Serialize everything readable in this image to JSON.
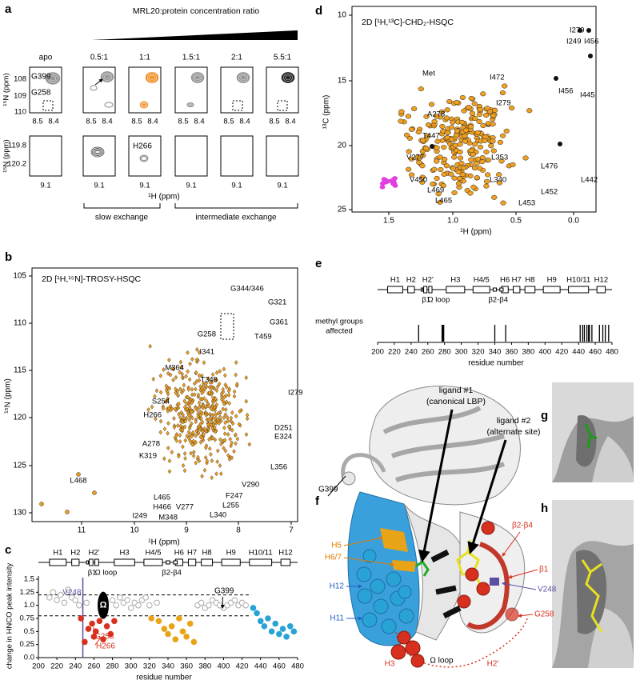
{
  "panel_labels": [
    "a",
    "b",
    "c",
    "d",
    "e",
    "f",
    "g",
    "h"
  ],
  "a": {
    "ratio_title": "MRL20:protein concentration ratio",
    "columns": [
      "apo",
      "0.5:1",
      "1:1",
      "1.5:1",
      "2:1",
      "5.5:1"
    ],
    "peaks": [
      "G399",
      "G258",
      "H266"
    ],
    "top_yticks": [
      "108",
      "109",
      "110"
    ],
    "top_xticks": [
      "8.5",
      "8.4"
    ],
    "bottom_yticks": [
      "119.8",
      "120.2"
    ],
    "bottom_xtick": "9.1",
    "ylabel": "¹⁵N (ppm)",
    "xlabel": "¹H (ppm)",
    "regimes": [
      "slow exchange",
      "intermediate exchange"
    ]
  },
  "b": {
    "title": "2D [¹H,¹⁵N]-TROSY-HSQC",
    "xticks": [
      "11",
      "10",
      "9",
      "8",
      "7"
    ],
    "yticks": [
      "105",
      "110",
      "115",
      "120",
      "125",
      "130"
    ],
    "xlabel": "¹H (ppm)",
    "ylabel": "¹⁵N (ppm)",
    "peaks": [
      "G344/346",
      "G321",
      "G258",
      "G361",
      "T459",
      "I341",
      "M364",
      "T349",
      "I279",
      "S254",
      "H266",
      "D251",
      "E324",
      "A278",
      "K319",
      "L356",
      "L468",
      "V290",
      "F247",
      "L465",
      "H466",
      "V277",
      "L255",
      "I249",
      "M348",
      "L340"
    ]
  },
  "c": {
    "helices": [
      "H1",
      "H2",
      "H2'",
      "H3",
      "H4/5",
      "H6",
      "H7",
      "H8",
      "H9",
      "H10/11",
      "H12"
    ],
    "strands": [
      "β1",
      "Ω loop",
      "β2-β4"
    ],
    "ylabel": "change in HNCO peak intensity",
    "xlabel": "residue number",
    "xlim": [
      200,
      480
    ],
    "xticks": [
      200,
      220,
      240,
      260,
      280,
      300,
      320,
      340,
      360,
      380,
      400,
      420,
      440,
      460,
      480
    ],
    "ylim": [
      0,
      1.5
    ],
    "yticks": [
      {
        "value": 0,
        "label": "0.0"
      },
      0.25,
      {
        "value": 0.5,
        "label": "0.5"
      },
      0.75,
      {
        "value": 1,
        "label": "1.0"
      },
      1.25,
      {
        "value": 1.5,
        "label": "1.5"
      }
    ],
    "thresholds": [
      0.8,
      1.2
    ],
    "highlight_residue": 248,
    "annotations": [
      "V248",
      "G399",
      "G258",
      "H266",
      "Ω"
    ],
    "series": [
      {
        "color": "#aaaaaa",
        "filled": false,
        "x": [
          212,
          216,
          220,
          224,
          228,
          232,
          236,
          240,
          244,
          252,
          280,
          284,
          288,
          292,
          296,
          300,
          304,
          308,
          312,
          316,
          320,
          328,
          372,
          376,
          380,
          384,
          388,
          392,
          396,
          400,
          404,
          408,
          412,
          416,
          420,
          424
        ],
        "y": [
          1.15,
          1.25,
          1.1,
          1.2,
          1.05,
          1.3,
          1.15,
          1.1,
          1.0,
          1.05,
          1.1,
          1.0,
          1.15,
          1.05,
          1.1,
          0.95,
          1.05,
          1.0,
          1.1,
          1.15,
          1.0,
          1.05,
          1.0,
          1.05,
          0.95,
          1.0,
          1.1,
          1.05,
          1.0,
          0.95,
          1.0,
          1.05,
          1.1,
          1.0,
          1.05,
          1.0
        ]
      },
      {
        "color": "#d7301f",
        "filled": true,
        "x": [
          246,
          250,
          254,
          258,
          260,
          262,
          266,
          270,
          274,
          278,
          282
        ],
        "y": [
          0.75,
          0.3,
          0.55,
          0.65,
          0.4,
          0.5,
          0.7,
          0.35,
          0.6,
          0.45,
          0.7
        ]
      },
      {
        "color": "#e8a317",
        "filled": true,
        "x": [
          322,
          330,
          336,
          340,
          344,
          348,
          352,
          356,
          360,
          364,
          368
        ],
        "y": [
          0.75,
          0.7,
          0.55,
          0.45,
          0.6,
          0.35,
          0.75,
          0.5,
          0.4,
          0.65,
          0.3
        ]
      },
      {
        "color": "#29a3d6",
        "filled": true,
        "x": [
          432,
          436,
          440,
          444,
          448,
          452,
          456,
          460,
          464,
          468,
          472,
          476
        ],
        "y": [
          0.95,
          0.85,
          0.7,
          0.6,
          0.75,
          0.5,
          0.65,
          0.45,
          0.55,
          0.4,
          0.6,
          0.5
        ]
      }
    ]
  },
  "d": {
    "title": "2D [¹H,¹³C]-CHD₂-HSQC",
    "xticks": [
      "1.5",
      "1.0",
      "0.5",
      "0.0"
    ],
    "yticks": [
      "10",
      "15",
      "20",
      "25"
    ],
    "xlabel": "¹H (ppm)",
    "ylabel": "¹³C (ppm)",
    "peaks": [
      "I279",
      "I249",
      "I456",
      "Met",
      "I472",
      "I279",
      "I456",
      "I445",
      "A278",
      "T447",
      "V277",
      "L353",
      "V450",
      "L340",
      "L469",
      "L465",
      "L476",
      "L442",
      "L452",
      "L453"
    ]
  },
  "e": {
    "helices": [
      "H1",
      "H2",
      "H2'",
      "H3",
      "H4/5",
      "H6",
      "H7",
      "H8",
      "H9",
      "H10/11",
      "H12"
    ],
    "strands": [
      "β1",
      "Ω loop",
      "β2-β4"
    ],
    "ylabel_lines": [
      "methyl groups",
      "affected"
    ],
    "xlabel": "residue number",
    "xlim": [
      200,
      480
    ],
    "xticks": [
      200,
      220,
      240,
      260,
      280,
      300,
      320,
      340,
      360,
      380,
      400,
      420,
      440,
      460,
      480
    ],
    "affected_residues": [
      249,
      277,
      278,
      279,
      340,
      353,
      442,
      445,
      447,
      450,
      452,
      453,
      456,
      465,
      469,
      472,
      476
    ]
  },
  "f": {
    "ligands": [
      {
        "name": "ligand #1",
        "site": "(canonical LBP)"
      },
      {
        "name": "ligand #2",
        "site": "(alternate site)"
      }
    ],
    "labels": [
      "G399",
      "H5",
      "H6/7",
      "H12",
      "H11",
      "β2-β4",
      "β1",
      "V248",
      "G258",
      "H3",
      "Ω loop",
      "H2'"
    ]
  }
}
